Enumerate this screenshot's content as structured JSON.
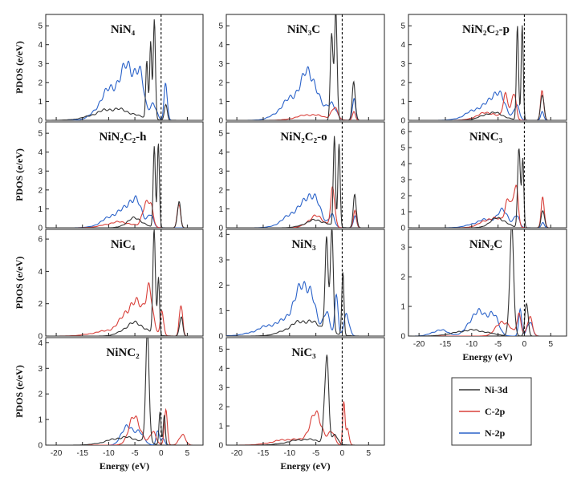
{
  "legend": {
    "entries": [
      {
        "label": "Ni-3d",
        "color": "#333333"
      },
      {
        "label": "C-2p",
        "color": "#d9403a"
      },
      {
        "label": "N-2p",
        "color": "#2a62c9"
      }
    ]
  },
  "chart_data": [
    {
      "type": "line",
      "title": "NiN₄",
      "xlabel": "",
      "ylabel": "PDOS (e/eV)",
      "xlim": [
        -22,
        8
      ],
      "ylim": [
        0,
        5.6
      ],
      "xticks": [],
      "yticks": [
        0,
        1,
        2,
        3,
        4,
        5
      ],
      "series": [
        {
          "name": "Ni-3d",
          "peaks": [
            [
              -2.7,
              3.4,
              0.2
            ],
            [
              -2.0,
              4.0,
              0.2
            ],
            [
              -1.3,
              5.5,
              0.2
            ],
            [
              0.9,
              1.0,
              0.25
            ],
            [
              -9,
              0.6,
              3.5
            ]
          ]
        },
        {
          "name": "N-2p",
          "peaks": [
            [
              -9.5,
              1.6,
              2.2
            ],
            [
              -6,
              2.3,
              1.5
            ],
            [
              -4,
              1.5,
              0.8
            ],
            [
              -1.5,
              0.9,
              0.6
            ],
            [
              0.9,
              2.0,
              0.3
            ]
          ]
        }
      ]
    },
    {
      "type": "line",
      "title": "NiN₃C",
      "xlabel": "",
      "ylabel": "",
      "xlim": [
        -22,
        8
      ],
      "ylim": [
        0,
        5.6
      ],
      "xticks": [],
      "yticks": [
        0,
        1,
        2,
        3,
        4,
        5
      ],
      "series": [
        {
          "name": "Ni-3d",
          "peaks": [
            [
              -2.0,
              4.6,
              0.25
            ],
            [
              -1.2,
              5.2,
              0.25
            ],
            [
              2.2,
              1.8,
              0.3
            ]
          ]
        },
        {
          "name": "C-2p",
          "peaks": [
            [
              -6,
              0.3,
              2.5
            ],
            [
              -1.5,
              0.6,
              0.6
            ],
            [
              2.2,
              0.4,
              0.3
            ]
          ]
        },
        {
          "name": "N-2p",
          "peaks": [
            [
              -9,
              1.2,
              2.5
            ],
            [
              -6,
              1.9,
              1.5
            ],
            [
              -2,
              0.9,
              0.8
            ],
            [
              2.2,
              1.2,
              0.3
            ]
          ]
        }
      ]
    },
    {
      "type": "line",
      "title": "NiN₂C₂-p",
      "xlabel": "",
      "ylabel": "",
      "xlim": [
        -22,
        8
      ],
      "ylim": [
        0,
        5.6
      ],
      "xticks": [],
      "yticks": [
        0,
        1,
        2,
        3,
        4,
        5
      ],
      "series": [
        {
          "name": "Ni-3d",
          "peaks": [
            [
              -1.3,
              4.8,
              0.2
            ],
            [
              -0.4,
              5.0,
              0.2
            ],
            [
              3.4,
              1.6,
              0.3
            ],
            [
              -6,
              0.4,
              2
            ]
          ]
        },
        {
          "name": "C-2p",
          "peaks": [
            [
              -3.5,
              1.3,
              0.5
            ],
            [
              -2,
              1.5,
              0.4
            ],
            [
              3.4,
              1.6,
              0.3
            ],
            [
              -7,
              0.4,
              2
            ]
          ]
        },
        {
          "name": "N-2p",
          "peaks": [
            [
              -8,
              0.7,
              2.5
            ],
            [
              -5,
              1.2,
              1.2
            ],
            [
              -1.5,
              0.8,
              0.5
            ],
            [
              3.4,
              0.4,
              0.3
            ]
          ]
        }
      ]
    },
    {
      "type": "line",
      "title": "NiN₂C₂-h",
      "xlabel": "",
      "ylabel": "PDOS (e/eV)",
      "xlim": [
        -22,
        8
      ],
      "ylim": [
        0,
        5.6
      ],
      "xticks": [],
      "yticks": [
        0,
        1,
        2,
        3,
        4,
        5
      ],
      "series": [
        {
          "name": "Ni-3d",
          "peaks": [
            [
              -1.3,
              4.5,
              0.2
            ],
            [
              -0.5,
              4.9,
              0.2
            ],
            [
              3.4,
              1.5,
              0.3
            ],
            [
              -5,
              0.5,
              1.5
            ]
          ]
        },
        {
          "name": "C-2p",
          "peaks": [
            [
              -3,
              1.2,
              0.6
            ],
            [
              -2,
              1.0,
              0.5
            ],
            [
              3.4,
              1.4,
              0.3
            ],
            [
              -8,
              0.3,
              2.5
            ]
          ]
        },
        {
          "name": "N-2p",
          "peaks": [
            [
              -8,
              0.8,
              2.5
            ],
            [
              -5,
              1.2,
              1.2
            ],
            [
              -2,
              0.7,
              0.5
            ]
          ]
        }
      ]
    },
    {
      "type": "line",
      "title": "NiN₂C₂-o",
      "xlabel": "",
      "ylabel": "",
      "xlim": [
        -22,
        8
      ],
      "ylim": [
        0,
        5.6
      ],
      "xticks": [],
      "yticks": [
        0,
        1,
        2,
        3,
        4,
        5
      ],
      "series": [
        {
          "name": "Ni-3d",
          "peaks": [
            [
              -1.5,
              4.8,
              0.2
            ],
            [
              -0.6,
              5.3,
              0.2
            ],
            [
              2.4,
              1.7,
              0.3
            ],
            [
              -5,
              0.4,
              2
            ]
          ]
        },
        {
          "name": "C-2p",
          "peaks": [
            [
              -1.8,
              1.9,
              0.4
            ],
            [
              -5,
              0.6,
              1.5
            ],
            [
              2.4,
              0.8,
              0.3
            ]
          ]
        },
        {
          "name": "N-2p",
          "peaks": [
            [
              -8,
              1.0,
              2.5
            ],
            [
              -5.5,
              1.2,
              1.2
            ],
            [
              -2,
              0.7,
              0.5
            ],
            [
              2.4,
              0.6,
              0.3
            ]
          ]
        }
      ]
    },
    {
      "type": "line",
      "title": "NiNC₃",
      "xlabel": "",
      "ylabel": "",
      "xlim": [
        -22,
        8
      ],
      "ylim": [
        0,
        6.6
      ],
      "xticks": [],
      "yticks": [
        0,
        1,
        2,
        3,
        4,
        5,
        6
      ],
      "series": [
        {
          "name": "Ni-3d",
          "peaks": [
            [
              -1.0,
              5.6,
              0.25
            ],
            [
              -0.3,
              4.2,
              0.2
            ],
            [
              3.5,
              1.2,
              0.3
            ],
            [
              -5,
              0.6,
              1.5
            ]
          ]
        },
        {
          "name": "C-2p",
          "peaks": [
            [
              -3,
              1.8,
              0.6
            ],
            [
              -1.6,
              2.4,
              0.4
            ],
            [
              3.5,
              2.0,
              0.3
            ],
            [
              -6,
              0.6,
              2
            ]
          ]
        },
        {
          "name": "N-2p",
          "peaks": [
            [
              -7,
              0.5,
              2.5
            ],
            [
              -4,
              0.8,
              1
            ],
            [
              -1.5,
              0.7,
              0.5
            ],
            [
              3.5,
              0.3,
              0.3
            ]
          ]
        }
      ]
    },
    {
      "type": "line",
      "title": "NiC₄",
      "xlabel": "",
      "ylabel": "PDOS (e/eV)",
      "xlim": [
        -22,
        8
      ],
      "ylim": [
        0,
        6.6
      ],
      "xticks": [],
      "yticks": [
        0,
        2,
        4,
        6
      ],
      "series": [
        {
          "name": "Ni-3d",
          "peaks": [
            [
              -1.3,
              5.8,
              0.25
            ],
            [
              -0.5,
              3.5,
              0.2
            ],
            [
              3.8,
              1.3,
              0.3
            ],
            [
              -5,
              0.8,
              2
            ]
          ]
        },
        {
          "name": "C-2p",
          "peaks": [
            [
              -5,
              2.0,
              2
            ],
            [
              -2.3,
              2.4,
              0.6
            ],
            [
              0.2,
              1.6,
              0.3
            ],
            [
              3.8,
              2.2,
              0.3
            ],
            [
              -10,
              0.3,
              3
            ]
          ]
        }
      ]
    },
    {
      "type": "line",
      "title": "NiN₃",
      "xlabel": "",
      "ylabel": "",
      "xlim": [
        -22,
        8
      ],
      "ylim": [
        0,
        4.2
      ],
      "xticks": [],
      "yticks": [
        0,
        1,
        2,
        3,
        4
      ],
      "series": [
        {
          "name": "Ni-3d",
          "peaks": [
            [
              -3,
              3.5,
              0.3
            ],
            [
              -2,
              3.6,
              0.3
            ],
            [
              0.1,
              2.8,
              0.2
            ],
            [
              -7,
              0.6,
              3
            ]
          ]
        },
        {
          "name": "N-2p",
          "peaks": [
            [
              -12,
              0.5,
              3.5
            ],
            [
              -8,
              1.4,
              1.5
            ],
            [
              -6,
              1.2,
              1
            ],
            [
              -3,
              1.0,
              0.6
            ],
            [
              -1.1,
              1.6,
              0.3
            ],
            [
              0.8,
              0.9,
              0.5
            ]
          ]
        }
      ]
    },
    {
      "type": "line",
      "title": "NiN₂C",
      "xlabel": "Energy (eV)",
      "ylabel": "",
      "xlim": [
        -22,
        8
      ],
      "ylim": [
        0,
        3.6
      ],
      "xticks": [
        -20,
        -15,
        -10,
        -5,
        0,
        5
      ],
      "yticks": [
        0,
        1,
        2,
        3
      ],
      "series": [
        {
          "name": "Ni-3d",
          "peaks": [
            [
              -2.4,
              3.3,
              0.4
            ],
            [
              0.4,
              1.1,
              0.3
            ],
            [
              -10,
              0.2,
              3
            ]
          ]
        },
        {
          "name": "C-2p",
          "peaks": [
            [
              -4,
              0.5,
              1.3
            ],
            [
              -1,
              0.7,
              0.4
            ],
            [
              1,
              0.6,
              0.5
            ]
          ]
        },
        {
          "name": "N-2p",
          "peaks": [
            [
              -16,
              0.2,
              1.5
            ],
            [
              -9,
              0.8,
              1.5
            ],
            [
              -6,
              0.7,
              1
            ],
            [
              -0.8,
              0.8,
              0.3
            ],
            [
              1,
              0.5,
              0.5
            ]
          ]
        }
      ]
    },
    {
      "type": "line",
      "title": "NiNC₂",
      "xlabel": "Energy (eV)",
      "ylabel": "PDOS (e/eV)",
      "xlim": [
        -22,
        8
      ],
      "ylim": [
        0,
        4.2
      ],
      "xticks": [
        -20,
        -15,
        -10,
        -5,
        0,
        5
      ],
      "yticks": [
        0,
        1,
        2,
        3,
        4
      ],
      "series": [
        {
          "name": "Ni-3d",
          "peaks": [
            [
              -2.6,
              3.8,
              0.35
            ],
            [
              -0.2,
              1.2,
              0.2
            ],
            [
              0.6,
              1.0,
              0.2
            ],
            [
              -7,
              0.3,
              3
            ]
          ]
        },
        {
          "name": "C-2p",
          "peaks": [
            [
              -5,
              1.1,
              1.1
            ],
            [
              -1.5,
              0.5,
              0.6
            ],
            [
              0.9,
              1.2,
              0.3
            ],
            [
              4,
              0.4,
              0.6
            ]
          ]
        },
        {
          "name": "N-2p",
          "peaks": [
            [
              -6.5,
              0.8,
              1
            ],
            [
              -4,
              0.5,
              0.8
            ],
            [
              -0.6,
              0.6,
              0.3
            ],
            [
              0.4,
              0.3,
              0.3
            ]
          ]
        }
      ]
    },
    {
      "type": "line",
      "title": "NiC₃",
      "xlabel": "Energy (eV)",
      "ylabel": "",
      "xlim": [
        -22,
        8
      ],
      "ylim": [
        0,
        5.6
      ],
      "xticks": [
        -20,
        -15,
        -10,
        -5,
        0,
        5
      ],
      "yticks": [
        0,
        1,
        2,
        3,
        4,
        5
      ],
      "series": [
        {
          "name": "Ni-3d",
          "peaks": [
            [
              -3,
              4.3,
              0.4
            ],
            [
              -1.3,
              0.5,
              0.5
            ],
            [
              -7,
              0.3,
              3
            ]
          ]
        },
        {
          "name": "C-2p",
          "peaks": [
            [
              -5,
              1.5,
              1.2
            ],
            [
              -2,
              0.6,
              0.6
            ],
            [
              0.3,
              2.7,
              0.2
            ],
            [
              1,
              0.8,
              0.3
            ],
            [
              -10,
              0.3,
              3
            ]
          ]
        }
      ]
    }
  ]
}
